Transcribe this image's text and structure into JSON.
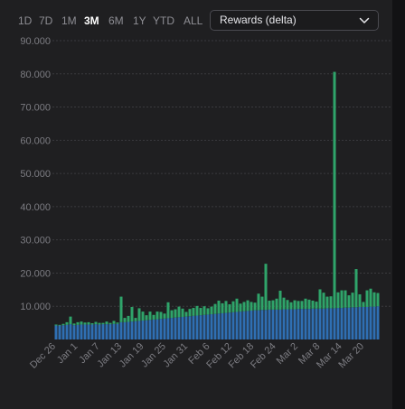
{
  "toolbar": {
    "ranges": [
      "1D",
      "7D",
      "1M",
      "3M",
      "6M",
      "1Y",
      "YTD",
      "ALL"
    ],
    "active_range": "3M",
    "metric_select": {
      "value": "Rewards (delta)",
      "icon": "chevron-down-icon"
    }
  },
  "colors": {
    "background": "#1f1f21",
    "grid": "#3a3a3e",
    "base_series": "#2f6fb3",
    "delta_series": "#2fa46a"
  },
  "chart_data": {
    "type": "bar",
    "stacked": true,
    "ylim": [
      0,
      90000
    ],
    "y_ticks": [
      "90.000",
      "80.000",
      "70.000",
      "60.000",
      "50.000",
      "40.000",
      "30.000",
      "20.000",
      "10.000"
    ],
    "y_tick_values": [
      90000,
      80000,
      70000,
      60000,
      50000,
      40000,
      30000,
      20000,
      10000
    ],
    "x_tick_labels": [
      "Dec 26",
      "Jan 1",
      "Jan 7",
      "Jan 13",
      "Jan 19",
      "Jan 25",
      "Jan 31",
      "Feb 6",
      "Feb 12",
      "Feb 18",
      "Feb 24",
      "Mar 2",
      "Mar 8",
      "Mar 14",
      "Mar 20"
    ],
    "grid": true,
    "series": [
      {
        "values": [
          4200,
          4200,
          4300,
          4400,
          4600,
          4300,
          4400,
          4500,
          4500,
          4500,
          4500,
          4600,
          4500,
          4600,
          4600,
          4600,
          4700,
          4700,
          5200,
          5200,
          5300,
          5400,
          5500,
          5600,
          5700,
          5800,
          5900,
          6000,
          6100,
          6200,
          6300,
          6400,
          6500,
          6600,
          6700,
          6800,
          6900,
          7000,
          7100,
          7200,
          7300,
          7400,
          7500,
          7600,
          7700,
          7800,
          7900,
          8000,
          8100,
          8200,
          8300,
          8400,
          8500,
          8600,
          8700,
          8800,
          8800,
          8900,
          8900,
          9000,
          9000,
          9000,
          9000,
          9100,
          9100,
          9100,
          9100,
          9200,
          9200,
          9200,
          9200,
          9300,
          9300,
          9300,
          9300,
          9400,
          9400,
          9400,
          9500,
          9500,
          9600,
          9600,
          9700,
          9700,
          9800,
          9800,
          9800,
          9900,
          9900,
          10000
        ]
      },
      {
        "values": [
          300,
          200,
          400,
          800,
          2300,
          500,
          800,
          900,
          600,
          700,
          400,
          700,
          500,
          400,
          800,
          400,
          900,
          400,
          7700,
          1300,
          1800,
          4400,
          1000,
          3800,
          2700,
          1500,
          2500,
          1400,
          2300,
          2100,
          1500,
          4800,
          2300,
          2500,
          3200,
          2500,
          1400,
          2200,
          2400,
          2900,
          2200,
          2600,
          1900,
          2300,
          3000,
          3900,
          3000,
          3600,
          2500,
          3300,
          4000,
          2400,
          2800,
          3200,
          2600,
          2300,
          5000,
          4000,
          13900,
          2700,
          2800,
          3300,
          5700,
          3500,
          2800,
          2100,
          2700,
          2400,
          2400,
          3100,
          2800,
          2400,
          2100,
          5800,
          4800,
          3500,
          3600,
          71200,
          4700,
          5300,
          5200,
          3700,
          4400,
          11500,
          3800,
          1500,
          5000,
          5400,
          4300,
          4000
        ]
      }
    ]
  }
}
